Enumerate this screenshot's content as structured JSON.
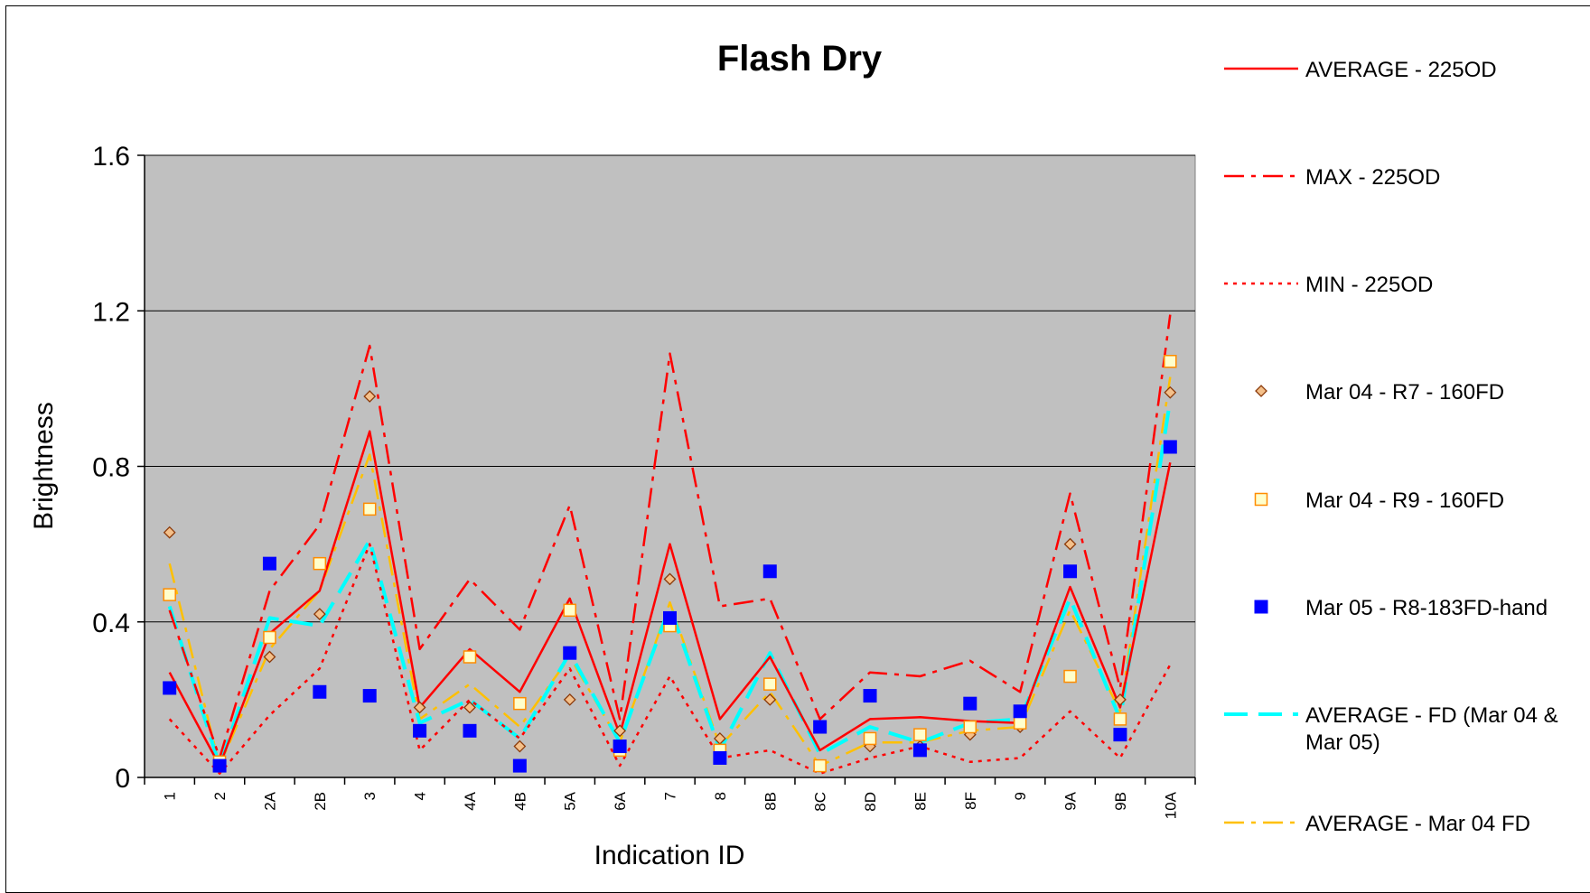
{
  "chart_data": {
    "type": "line",
    "title": "Flash Dry",
    "xlabel": "Indication ID",
    "ylabel": "Brightness",
    "ylim": [
      0,
      1.6
    ],
    "yticks": [
      "0",
      "0.4",
      "0.8",
      "1.2",
      "1.6"
    ],
    "grid": true,
    "legend_position": "right",
    "categories": [
      "1",
      "2",
      "2A",
      "2B",
      "3",
      "4",
      "4A",
      "4B",
      "5A",
      "6A",
      "7",
      "8",
      "8B",
      "8C",
      "8D",
      "8E",
      "8F",
      "9",
      "9A",
      "9B",
      "10A"
    ],
    "series": [
      {
        "name": "AVERAGE - 225OD",
        "style": "solid",
        "color": "#ff0000",
        "values": [
          0.27,
          0.03,
          0.37,
          0.48,
          0.89,
          0.18,
          0.33,
          0.22,
          0.46,
          0.11,
          0.6,
          0.15,
          0.31,
          0.07,
          0.15,
          0.155,
          0.145,
          0.14,
          0.49,
          0.18,
          0.81
        ]
      },
      {
        "name": "MAX - 225OD",
        "style": "dashdot",
        "color": "#ff0000",
        "values": [
          0.43,
          0.05,
          0.48,
          0.65,
          1.11,
          0.33,
          0.51,
          0.38,
          0.7,
          0.15,
          1.09,
          0.44,
          0.46,
          0.15,
          0.27,
          0.26,
          0.3,
          0.22,
          0.73,
          0.23,
          1.19
        ]
      },
      {
        "name": "MIN - 225OD",
        "style": "dotted",
        "color": "#ff0000",
        "values": [
          0.15,
          0.01,
          0.16,
          0.28,
          0.6,
          0.07,
          0.2,
          0.1,
          0.28,
          0.03,
          0.26,
          0.05,
          0.07,
          0.01,
          0.05,
          0.08,
          0.04,
          0.05,
          0.17,
          0.05,
          0.29
        ]
      },
      {
        "name": "Mar 04 - R7 - 160FD",
        "style": "marker-diamond",
        "color": "#d2691e",
        "values": [
          0.63,
          0.03,
          0.31,
          0.42,
          0.98,
          0.18,
          0.18,
          0.08,
          0.2,
          0.12,
          0.51,
          0.1,
          0.2,
          0.03,
          0.08,
          0.08,
          0.11,
          0.13,
          0.6,
          0.2,
          0.99
        ]
      },
      {
        "name": "Mar 04 - R9 - 160FD",
        "style": "marker-square-open",
        "color": "#ffa500",
        "values": [
          0.47,
          0.04,
          0.36,
          0.55,
          0.69,
          0.12,
          0.31,
          0.19,
          0.43,
          0.07,
          0.39,
          0.07,
          0.24,
          0.03,
          0.1,
          0.11,
          0.13,
          0.14,
          0.26,
          0.15,
          1.07
        ]
      },
      {
        "name": "Mar 05 - R8-183FD-hand",
        "style": "marker-square-filled",
        "color": "#0000ff",
        "values": [
          0.23,
          0.03,
          0.55,
          0.22,
          0.21,
          0.12,
          0.12,
          0.03,
          0.32,
          0.08,
          0.41,
          0.05,
          0.53,
          0.13,
          0.21,
          0.07,
          0.19,
          0.17,
          0.53,
          0.11,
          0.85
        ]
      },
      {
        "name": "AVERAGE - FD (Mar 04 & Mar 05)",
        "style": "dashed",
        "color": "#00ffff",
        "values": [
          0.44,
          0.03,
          0.41,
          0.39,
          0.61,
          0.14,
          0.2,
          0.1,
          0.32,
          0.09,
          0.44,
          0.07,
          0.32,
          0.06,
          0.13,
          0.09,
          0.14,
          0.15,
          0.46,
          0.15,
          0.97
        ]
      },
      {
        "name": "AVERAGE - Mar 04 FD",
        "style": "dashdot",
        "color": "#ffc000",
        "values": [
          0.55,
          0.03,
          0.33,
          0.48,
          0.83,
          0.15,
          0.24,
          0.13,
          0.31,
          0.09,
          0.45,
          0.08,
          0.22,
          0.03,
          0.09,
          0.09,
          0.12,
          0.13,
          0.43,
          0.17,
          1.03
        ]
      }
    ]
  }
}
